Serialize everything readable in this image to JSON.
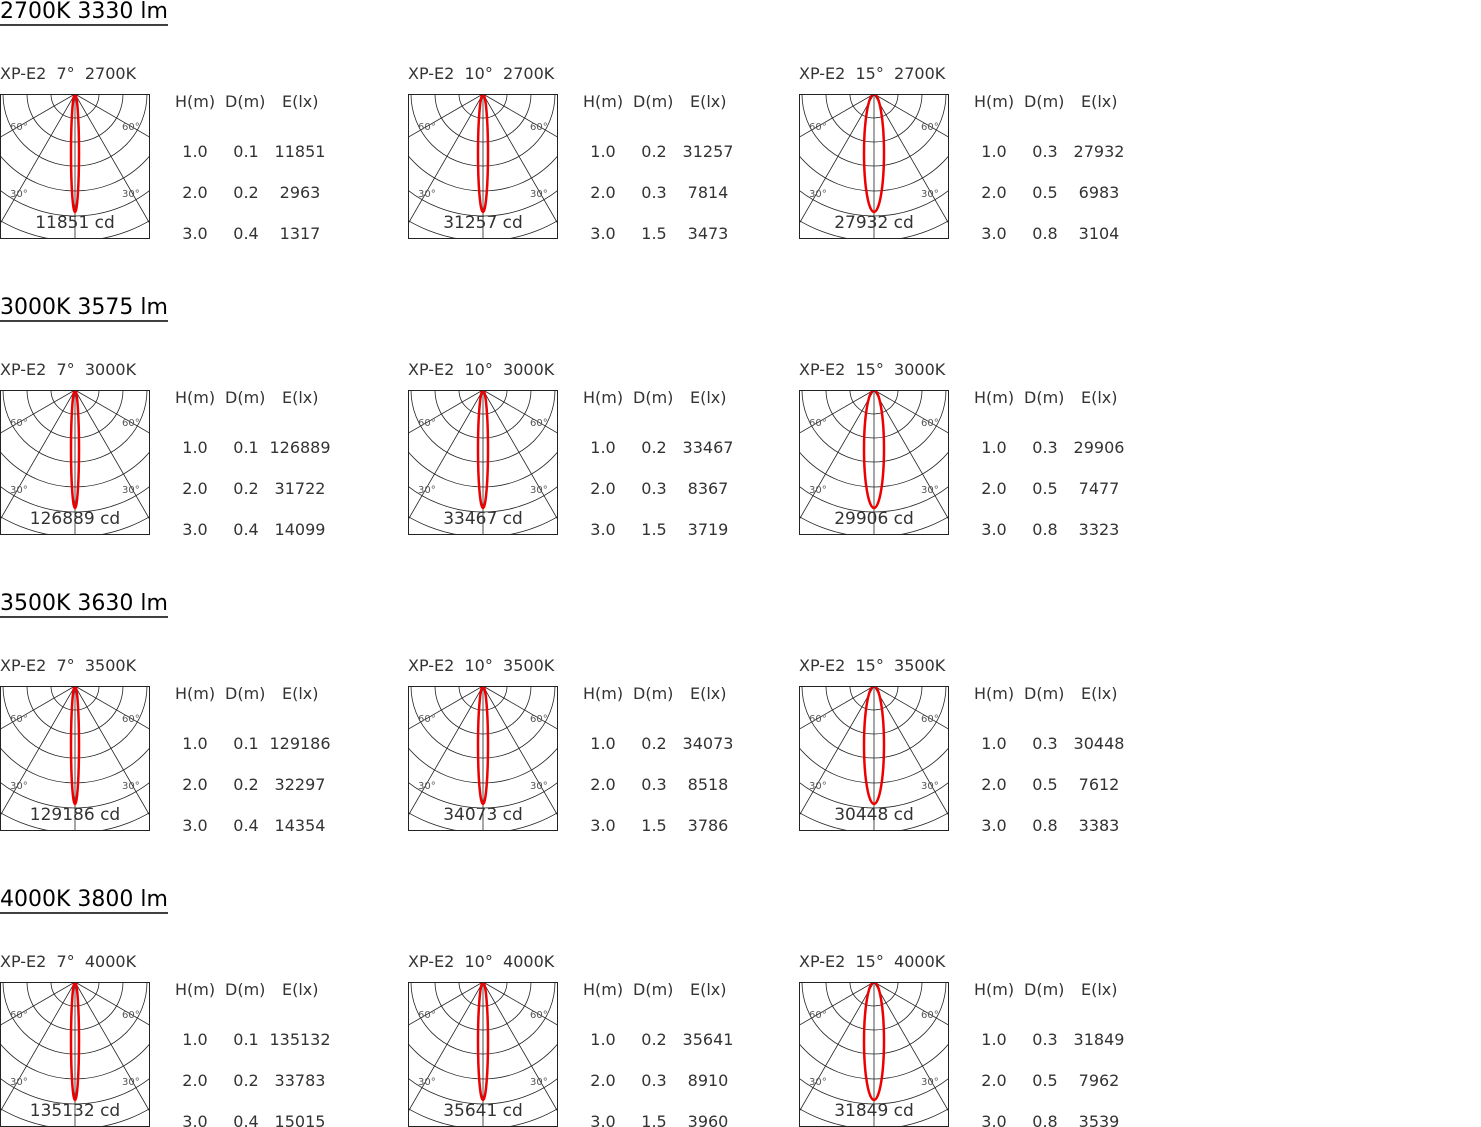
{
  "angle_labels": {
    "outer": "60°",
    "inner": "30°"
  },
  "sections": [
    {
      "title": "2700K 3330 lm",
      "panels": [
        {
          "label": "XP-E2  7°  2700K",
          "intensity": "11851 cd",
          "table": {
            "header": [
              "H(m)",
              "D(m)",
              "E(lx)"
            ],
            "rows": [
              [
                "1.0",
                "0.1",
                "11851"
              ],
              [
                "2.0",
                "0.2",
                "2963"
              ],
              [
                "3.0",
                "0.4",
                "1317"
              ]
            ]
          }
        },
        {
          "label": "XP-E2  10°  2700K",
          "intensity": "31257 cd",
          "table": {
            "header": [
              "H(m)",
              "D(m)",
              "E(lx)"
            ],
            "rows": [
              [
                "1.0",
                "0.2",
                "31257"
              ],
              [
                "2.0",
                "0.3",
                "7814"
              ],
              [
                "3.0",
                "1.5",
                "3473"
              ]
            ]
          }
        },
        {
          "label": "XP-E2  15°  2700K",
          "intensity": "27932 cd",
          "table": {
            "header": [
              "H(m)",
              "D(m)",
              "E(lx)"
            ],
            "rows": [
              [
                "1.0",
                "0.3",
                "27932"
              ],
              [
                "2.0",
                "0.5",
                "6983"
              ],
              [
                "3.0",
                "0.8",
                "3104"
              ]
            ]
          }
        }
      ]
    },
    {
      "title": "3000K 3575 lm",
      "panels": [
        {
          "label": "XP-E2  7°  3000K",
          "intensity": "126889 cd",
          "table": {
            "header": [
              "H(m)",
              "D(m)",
              "E(lx)"
            ],
            "rows": [
              [
                "1.0",
                "0.1",
                "126889"
              ],
              [
                "2.0",
                "0.2",
                "31722"
              ],
              [
                "3.0",
                "0.4",
                "14099"
              ]
            ]
          }
        },
        {
          "label": "XP-E2  10°  3000K",
          "intensity": "33467 cd",
          "table": {
            "header": [
              "H(m)",
              "D(m)",
              "E(lx)"
            ],
            "rows": [
              [
                "1.0",
                "0.2",
                "33467"
              ],
              [
                "2.0",
                "0.3",
                "8367"
              ],
              [
                "3.0",
                "1.5",
                "3719"
              ]
            ]
          }
        },
        {
          "label": "XP-E2  15°  3000K",
          "intensity": "29906 cd",
          "table": {
            "header": [
              "H(m)",
              "D(m)",
              "E(lx)"
            ],
            "rows": [
              [
                "1.0",
                "0.3",
                "29906"
              ],
              [
                "2.0",
                "0.5",
                "7477"
              ],
              [
                "3.0",
                "0.8",
                "3323"
              ]
            ]
          }
        }
      ]
    },
    {
      "title": "3500K 3630 lm",
      "panels": [
        {
          "label": "XP-E2  7°  3500K",
          "intensity": "129186 cd",
          "table": {
            "header": [
              "H(m)",
              "D(m)",
              "E(lx)"
            ],
            "rows": [
              [
                "1.0",
                "0.1",
                "129186"
              ],
              [
                "2.0",
                "0.2",
                "32297"
              ],
              [
                "3.0",
                "0.4",
                "14354"
              ]
            ]
          }
        },
        {
          "label": "XP-E2  10°  3500K",
          "intensity": "34073 cd",
          "table": {
            "header": [
              "H(m)",
              "D(m)",
              "E(lx)"
            ],
            "rows": [
              [
                "1.0",
                "0.2",
                "34073"
              ],
              [
                "2.0",
                "0.3",
                "8518"
              ],
              [
                "3.0",
                "1.5",
                "3786"
              ]
            ]
          }
        },
        {
          "label": "XP-E2  15°  3500K",
          "intensity": "30448 cd",
          "table": {
            "header": [
              "H(m)",
              "D(m)",
              "E(lx)"
            ],
            "rows": [
              [
                "1.0",
                "0.3",
                "30448"
              ],
              [
                "2.0",
                "0.5",
                "7612"
              ],
              [
                "3.0",
                "0.8",
                "3383"
              ]
            ]
          }
        }
      ]
    },
    {
      "title": "4000K 3800 lm",
      "panels": [
        {
          "label": "XP-E2  7°  4000K",
          "intensity": "135132 cd",
          "table": {
            "header": [
              "H(m)",
              "D(m)",
              "E(lx)"
            ],
            "rows": [
              [
                "1.0",
                "0.1",
                "135132"
              ],
              [
                "2.0",
                "0.2",
                "33783"
              ],
              [
                "3.0",
                "0.4",
                "15015"
              ]
            ]
          }
        },
        {
          "label": "XP-E2  10°  4000K",
          "intensity": "35641 cd",
          "table": {
            "header": [
              "H(m)",
              "D(m)",
              "E(lx)"
            ],
            "rows": [
              [
                "1.0",
                "0.2",
                "35641"
              ],
              [
                "2.0",
                "0.3",
                "8910"
              ],
              [
                "3.0",
                "1.5",
                "3960"
              ]
            ]
          }
        },
        {
          "label": "XP-E2  15°  4000K",
          "intensity": "31849 cd",
          "table": {
            "header": [
              "H(m)",
              "D(m)",
              "E(lx)"
            ],
            "rows": [
              [
                "1.0",
                "0.3",
                "31849"
              ],
              [
                "2.0",
                "0.5",
                "7962"
              ],
              [
                "3.0",
                "0.8",
                "3539"
              ]
            ]
          }
        }
      ]
    }
  ]
}
